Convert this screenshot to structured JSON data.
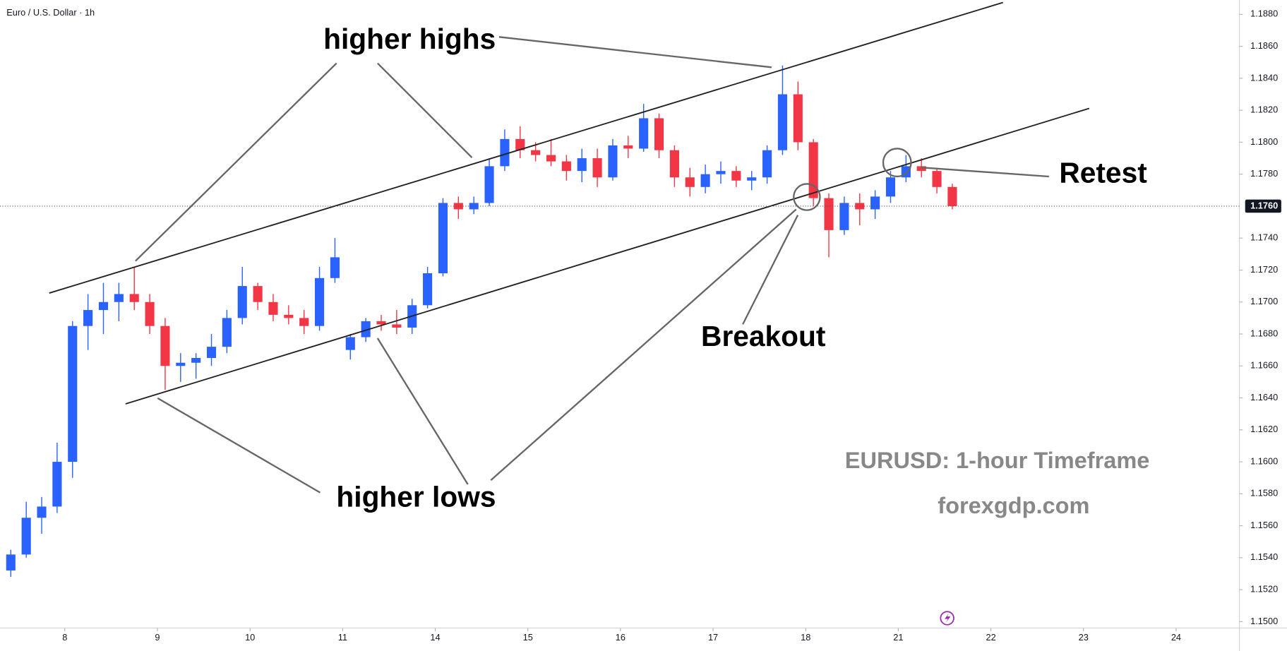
{
  "chart_data": {
    "type": "candlestick",
    "title": "Euro / U.S. Dollar · 1h",
    "up_color": "#2962ff",
    "down_color": "#f23645",
    "series": [
      {
        "open": [
          1.1532,
          1.1542,
          1.1565,
          1.1572,
          1.16,
          1.1685,
          1.1695,
          1.17,
          1.1705,
          1.17,
          1.1685,
          1.166,
          1.1662,
          1.1665,
          1.1672,
          1.169,
          1.171,
          1.17,
          1.1692,
          1.169,
          1.1685,
          1.1715,
          1.167,
          1.1678,
          1.1688,
          1.1686,
          1.1684,
          1.1698,
          1.1718,
          1.1762,
          1.1758,
          1.1762,
          1.1785,
          1.1802,
          1.1795,
          1.1792,
          1.1788,
          1.1782,
          1.179,
          1.1778,
          1.1798,
          1.1796,
          1.1815,
          1.1795,
          1.1778,
          1.1772,
          1.178,
          1.1782,
          1.1776,
          1.1778,
          1.1795,
          1.183,
          1.18,
          1.1765,
          1.1745,
          1.1762,
          1.1758,
          1.1766,
          1.1778,
          1.1785,
          1.1782,
          1.1772
        ],
        "high": [
          1.1545,
          1.1575,
          1.1578,
          1.1612,
          1.1688,
          1.1705,
          1.1712,
          1.1712,
          1.1722,
          1.1705,
          1.169,
          1.1668,
          1.1668,
          1.168,
          1.1695,
          1.1722,
          1.1712,
          1.1705,
          1.1698,
          1.1695,
          1.1722,
          1.174,
          1.168,
          1.169,
          1.1692,
          1.1695,
          1.1702,
          1.1722,
          1.1765,
          1.1766,
          1.1766,
          1.179,
          1.1808,
          1.181,
          1.18,
          1.1802,
          1.1792,
          1.1796,
          1.1796,
          1.1802,
          1.1804,
          1.1824,
          1.1818,
          1.1798,
          1.1784,
          1.1786,
          1.1788,
          1.1785,
          1.1782,
          1.1798,
          1.1848,
          1.1838,
          1.1802,
          1.1768,
          1.1766,
          1.1768,
          1.177,
          1.1782,
          1.1792,
          1.179,
          1.1784,
          1.1774
        ],
        "low": [
          1.1528,
          1.154,
          1.1555,
          1.1568,
          1.159,
          1.167,
          1.168,
          1.1688,
          1.1695,
          1.168,
          1.1645,
          1.165,
          1.1652,
          1.166,
          1.1668,
          1.1686,
          1.1695,
          1.1688,
          1.1686,
          1.168,
          1.1682,
          1.1712,
          1.1664,
          1.1675,
          1.1682,
          1.168,
          1.168,
          1.1696,
          1.1716,
          1.1752,
          1.1755,
          1.176,
          1.1782,
          1.179,
          1.1788,
          1.1785,
          1.1776,
          1.1775,
          1.1772,
          1.1776,
          1.179,
          1.1794,
          1.179,
          1.1772,
          1.1766,
          1.1768,
          1.1774,
          1.1772,
          1.177,
          1.1774,
          1.1792,
          1.1795,
          1.176,
          1.1728,
          1.1742,
          1.1748,
          1.1752,
          1.1762,
          1.1775,
          1.1778,
          1.1768,
          1.1758
        ],
        "close": [
          1.1542,
          1.1565,
          1.1572,
          1.16,
          1.1685,
          1.1695,
          1.17,
          1.1705,
          1.17,
          1.1685,
          1.166,
          1.1662,
          1.1665,
          1.1672,
          1.169,
          1.171,
          1.17,
          1.1692,
          1.169,
          1.1685,
          1.1715,
          1.1728,
          1.1678,
          1.1688,
          1.1686,
          1.1684,
          1.1698,
          1.1718,
          1.1762,
          1.1758,
          1.1762,
          1.1785,
          1.1802,
          1.1795,
          1.1792,
          1.1788,
          1.1782,
          1.179,
          1.1778,
          1.1798,
          1.1796,
          1.1815,
          1.1795,
          1.1778,
          1.1772,
          1.178,
          1.1782,
          1.1776,
          1.1778,
          1.1795,
          1.183,
          1.18,
          1.1765,
          1.1745,
          1.1762,
          1.1758,
          1.1766,
          1.1778,
          1.1785,
          1.1782,
          1.1772,
          1.176
        ]
      }
    ],
    "xlim": [
      -0.7,
      79.6
    ],
    "xticks": [
      {
        "value": 3.5,
        "label": "8"
      },
      {
        "value": 9.5,
        "label": "9"
      },
      {
        "value": 15.5,
        "label": "10"
      },
      {
        "value": 21.5,
        "label": "11"
      },
      {
        "value": 27.5,
        "label": "14"
      },
      {
        "value": 33.5,
        "label": "15"
      },
      {
        "value": 39.5,
        "label": "16"
      },
      {
        "value": 45.5,
        "label": "17"
      },
      {
        "value": 51.5,
        "label": "18"
      },
      {
        "value": 57.5,
        "label": "21"
      },
      {
        "value": 63.5,
        "label": "22"
      },
      {
        "value": 69.5,
        "label": "23"
      },
      {
        "value": 75.5,
        "label": "24"
      }
    ],
    "ylim": [
      1.1496,
      1.1889
    ],
    "yticks": [
      {
        "value": 1.15,
        "label": "1.1500"
      },
      {
        "value": 1.152,
        "label": "1.1520"
      },
      {
        "value": 1.154,
        "label": "1.1540"
      },
      {
        "value": 1.156,
        "label": "1.1560"
      },
      {
        "value": 1.158,
        "label": "1.1580"
      },
      {
        "value": 1.16,
        "label": "1.1600"
      },
      {
        "value": 1.162,
        "label": "1.1620"
      },
      {
        "value": 1.164,
        "label": "1.1640"
      },
      {
        "value": 1.166,
        "label": "1.1660"
      },
      {
        "value": 1.168,
        "label": "1.1680"
      },
      {
        "value": 1.17,
        "label": "1.1700"
      },
      {
        "value": 1.172,
        "label": "1.1720"
      },
      {
        "value": 1.174,
        "label": "1.1740"
      },
      {
        "value": 1.178,
        "label": "1.1780"
      },
      {
        "value": 1.18,
        "label": "1.1800"
      },
      {
        "value": 1.182,
        "label": "1.1820"
      },
      {
        "value": 1.184,
        "label": "1.1840"
      },
      {
        "value": 1.186,
        "label": "1.1860"
      },
      {
        "value": 1.188,
        "label": "1.1880"
      }
    ],
    "last_price": {
      "value": 1.176,
      "label": "1.1760"
    },
    "annotations": [
      "higher highs",
      "higher lows",
      "Breakout",
      "Retest",
      "EURUSD: 1-hour Timeframe",
      "forexgdp.com"
    ]
  }
}
